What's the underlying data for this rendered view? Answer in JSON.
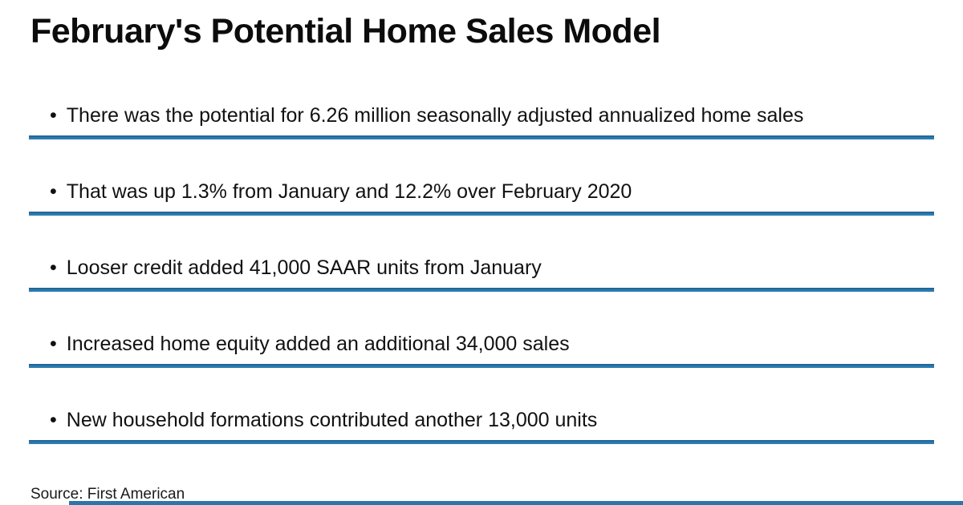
{
  "title": "February's Potential Home Sales Model",
  "bullet_marker": "•",
  "bullets": [
    {
      "text": "There was the potential for 6.26 million seasonally adjusted annualized home sales"
    },
    {
      "text": "That was up 1.3% from January and 12.2% over February 2020"
    },
    {
      "text": "Looser credit added 41,000 SAAR units from January"
    },
    {
      "text": "Increased home equity added an additional 34,000 sales"
    },
    {
      "text": "New household formations contributed another 13,000 units"
    }
  ],
  "source": "Source: First American",
  "colors": {
    "accent": "#2a76aa",
    "text": "#111111",
    "background": "#ffffff"
  }
}
